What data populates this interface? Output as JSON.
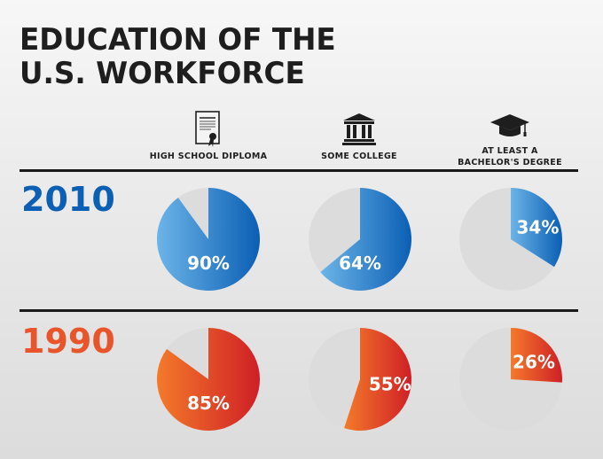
{
  "title": {
    "line1": "EDUCATION OF THE",
    "line2": "U.S. WORKFORCE"
  },
  "columns": [
    {
      "label_lines": [
        "HIGH SCHOOL DIPLOMA"
      ],
      "icon": "diploma-icon"
    },
    {
      "label_lines": [
        "SOME COLLEGE"
      ],
      "icon": "college-building-icon"
    },
    {
      "label_lines": [
        "AT LEAST A",
        "BACHELOR'S DEGREE"
      ],
      "icon": "graduation-cap-icon"
    }
  ],
  "colors": {
    "blue_dark": "#0b5fb4",
    "blue_light": "#6cb4e8",
    "orange_dark": "#cf1f26",
    "orange_light": "#f47a2a",
    "empty": "#dcdcdc"
  },
  "chart_data": {
    "type": "pie",
    "categories": [
      "HIGH SCHOOL DIPLOMA",
      "SOME COLLEGE",
      "AT LEAST A BACHELOR'S DEGREE"
    ],
    "unit": "%",
    "series": [
      {
        "name": "2010",
        "values": [
          90,
          64,
          34
        ],
        "labels": [
          "90%",
          "64%",
          "34%"
        ]
      },
      {
        "name": "1990",
        "values": [
          85,
          55,
          26
        ],
        "labels": [
          "85%",
          "55%",
          "26%"
        ]
      }
    ]
  }
}
